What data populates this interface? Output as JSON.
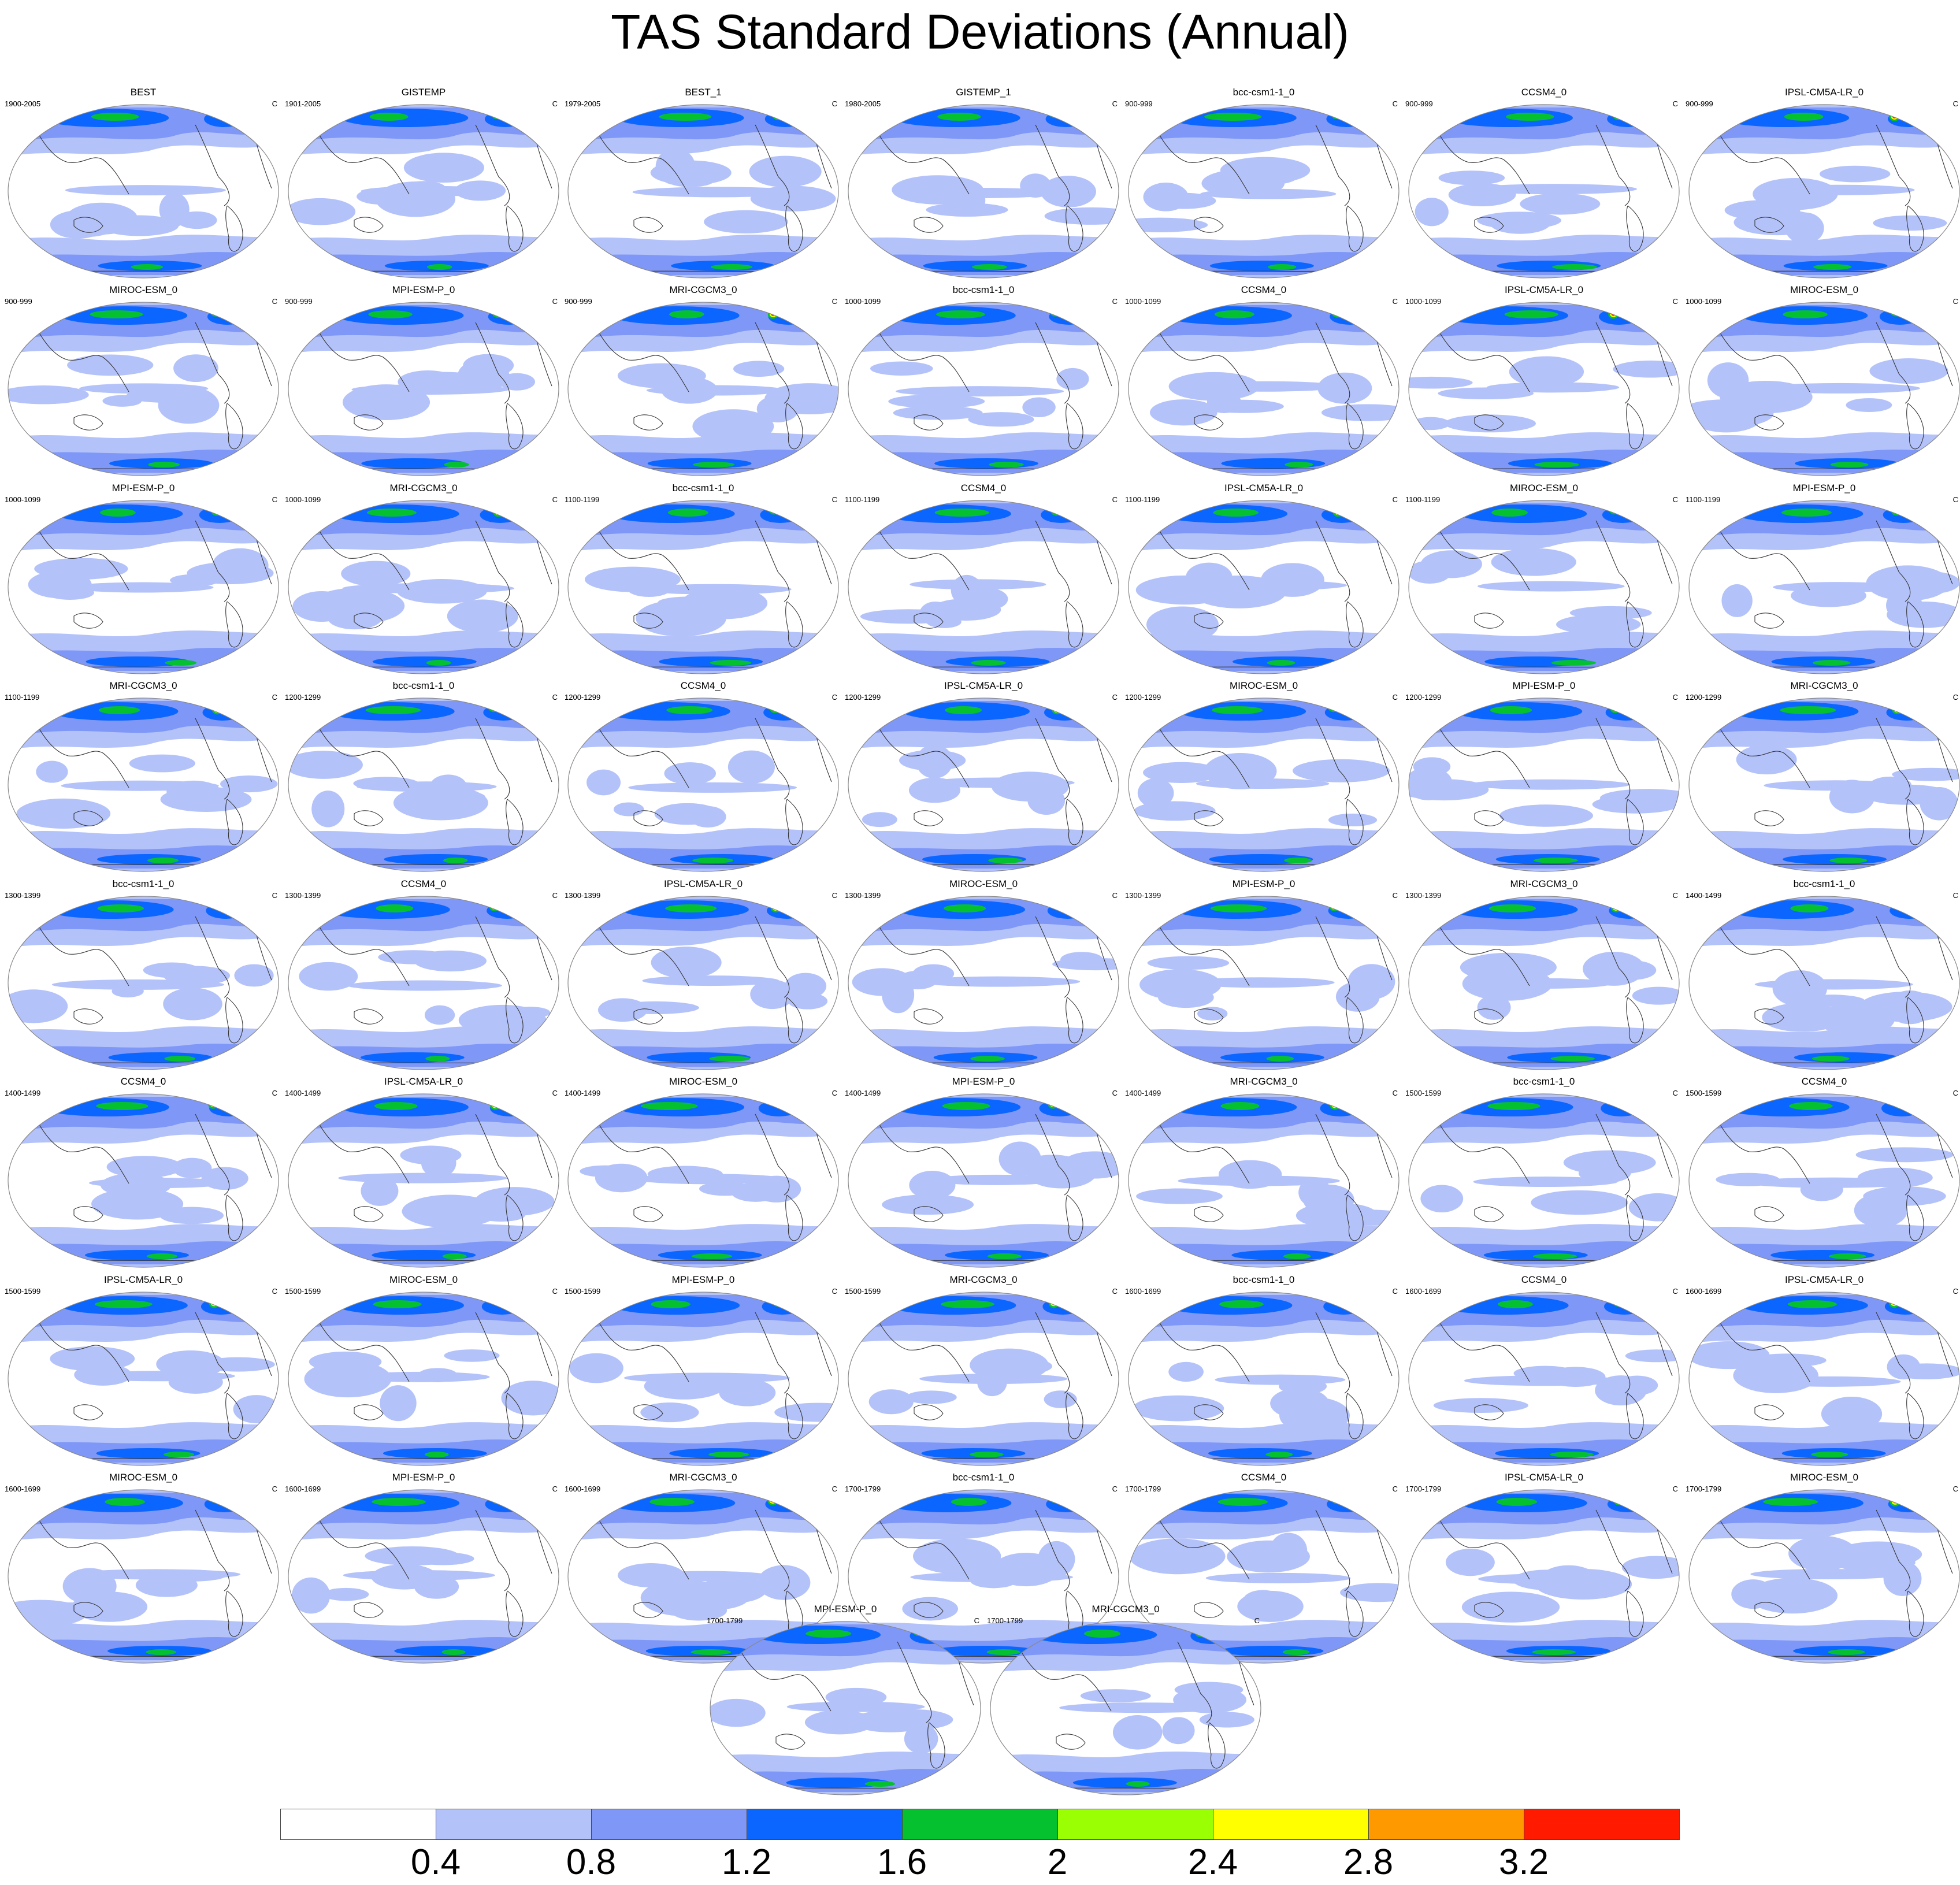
{
  "title": "TAS Standard Deviations (Annual)",
  "unit_label": "C",
  "colors": {
    "levels": [
      "#ffffff",
      "#b4c2fa",
      "#7f97f7",
      "#0b66ff",
      "#05c12f",
      "#99ff02",
      "#ffff00",
      "#ff9900",
      "#ff1a00"
    ],
    "coast": "#333333",
    "outline": "#888888"
  },
  "colorbar": {
    "ticks": [
      "0.4",
      "0.8",
      "1.2",
      "1.6",
      "2",
      "2.4",
      "2.8",
      "3.2"
    ]
  },
  "panels": [
    {
      "title": "BEST",
      "period": "1900-2005"
    },
    {
      "title": "GISTEMP",
      "period": "1901-2005"
    },
    {
      "title": "BEST_1",
      "period": "1979-2005"
    },
    {
      "title": "GISTEMP_1",
      "period": "1980-2005"
    },
    {
      "title": "bcc-csm1-1_0",
      "period": "900-999"
    },
    {
      "title": "CCSM4_0",
      "period": "900-999"
    },
    {
      "title": "IPSL-CM5A-LR_0",
      "period": "900-999"
    },
    {
      "title": "MIROC-ESM_0",
      "period": "900-999"
    },
    {
      "title": "MPI-ESM-P_0",
      "period": "900-999"
    },
    {
      "title": "MRI-CGCM3_0",
      "period": "900-999"
    },
    {
      "title": "bcc-csm1-1_0",
      "period": "1000-1099"
    },
    {
      "title": "CCSM4_0",
      "period": "1000-1099"
    },
    {
      "title": "IPSL-CM5A-LR_0",
      "period": "1000-1099"
    },
    {
      "title": "MIROC-ESM_0",
      "period": "1000-1099"
    },
    {
      "title": "MPI-ESM-P_0",
      "period": "1000-1099"
    },
    {
      "title": "MRI-CGCM3_0",
      "period": "1000-1099"
    },
    {
      "title": "bcc-csm1-1_0",
      "period": "1100-1199"
    },
    {
      "title": "CCSM4_0",
      "period": "1100-1199"
    },
    {
      "title": "IPSL-CM5A-LR_0",
      "period": "1100-1199"
    },
    {
      "title": "MIROC-ESM_0",
      "period": "1100-1199"
    },
    {
      "title": "MPI-ESM-P_0",
      "period": "1100-1199"
    },
    {
      "title": "MRI-CGCM3_0",
      "period": "1100-1199"
    },
    {
      "title": "bcc-csm1-1_0",
      "period": "1200-1299"
    },
    {
      "title": "CCSM4_0",
      "period": "1200-1299"
    },
    {
      "title": "IPSL-CM5A-LR_0",
      "period": "1200-1299"
    },
    {
      "title": "MIROC-ESM_0",
      "period": "1200-1299"
    },
    {
      "title": "MPI-ESM-P_0",
      "period": "1200-1299"
    },
    {
      "title": "MRI-CGCM3_0",
      "period": "1200-1299"
    },
    {
      "title": "bcc-csm1-1_0",
      "period": "1300-1399"
    },
    {
      "title": "CCSM4_0",
      "period": "1300-1399"
    },
    {
      "title": "IPSL-CM5A-LR_0",
      "period": "1300-1399"
    },
    {
      "title": "MIROC-ESM_0",
      "period": "1300-1399"
    },
    {
      "title": "MPI-ESM-P_0",
      "period": "1300-1399"
    },
    {
      "title": "MRI-CGCM3_0",
      "period": "1300-1399"
    },
    {
      "title": "bcc-csm1-1_0",
      "period": "1400-1499"
    },
    {
      "title": "CCSM4_0",
      "period": "1400-1499"
    },
    {
      "title": "IPSL-CM5A-LR_0",
      "period": "1400-1499"
    },
    {
      "title": "MIROC-ESM_0",
      "period": "1400-1499"
    },
    {
      "title": "MPI-ESM-P_0",
      "period": "1400-1499"
    },
    {
      "title": "MRI-CGCM3_0",
      "period": "1400-1499"
    },
    {
      "title": "bcc-csm1-1_0",
      "period": "1500-1599"
    },
    {
      "title": "CCSM4_0",
      "period": "1500-1599"
    },
    {
      "title": "IPSL-CM5A-LR_0",
      "period": "1500-1599"
    },
    {
      "title": "MIROC-ESM_0",
      "period": "1500-1599"
    },
    {
      "title": "MPI-ESM-P_0",
      "period": "1500-1599"
    },
    {
      "title": "MRI-CGCM3_0",
      "period": "1500-1599"
    },
    {
      "title": "bcc-csm1-1_0",
      "period": "1600-1699"
    },
    {
      "title": "CCSM4_0",
      "period": "1600-1699"
    },
    {
      "title": "IPSL-CM5A-LR_0",
      "period": "1600-1699"
    },
    {
      "title": "MIROC-ESM_0",
      "period": "1600-1699"
    },
    {
      "title": "MPI-ESM-P_0",
      "period": "1600-1699"
    },
    {
      "title": "MRI-CGCM3_0",
      "period": "1600-1699"
    },
    {
      "title": "bcc-csm1-1_0",
      "period": "1700-1799"
    },
    {
      "title": "CCSM4_0",
      "period": "1700-1799"
    },
    {
      "title": "IPSL-CM5A-LR_0",
      "period": "1700-1799"
    },
    {
      "title": "MIROC-ESM_0",
      "period": "1700-1799"
    },
    {
      "title": "MPI-ESM-P_0",
      "period": "1700-1799"
    },
    {
      "title": "MRI-CGCM3_0",
      "period": "1700-1799"
    }
  ]
}
